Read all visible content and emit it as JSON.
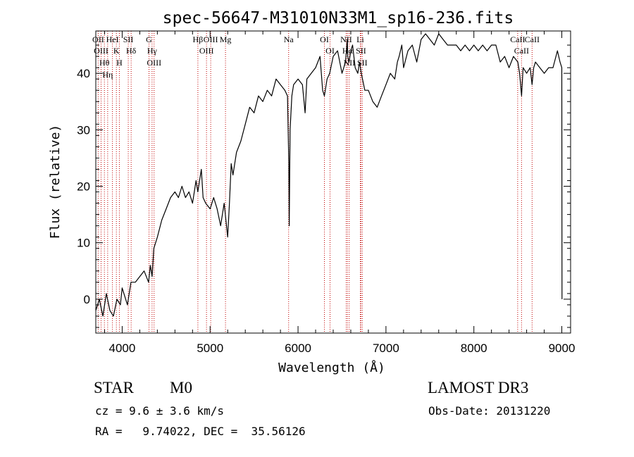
{
  "chart_data": {
    "type": "line",
    "title": "spec-56647-M31010N33M1_sp16-236.fits",
    "xlabel": "Wavelength (Å)",
    "ylabel": "Flux (relative)",
    "xlim": [
      3700,
      9100
    ],
    "ylim": [
      -6,
      47.5
    ],
    "xticks": [
      4000,
      5000,
      6000,
      7000,
      8000,
      9000
    ],
    "yticks": [
      0,
      10,
      20,
      30,
      40
    ],
    "series": [
      {
        "name": "flux",
        "x": [
          3700,
          3740,
          3780,
          3820,
          3860,
          3900,
          3940,
          3980,
          4000,
          4020,
          4060,
          4100,
          4150,
          4200,
          4250,
          4300,
          4320,
          4340,
          4360,
          4400,
          4450,
          4500,
          4550,
          4600,
          4640,
          4680,
          4720,
          4760,
          4800,
          4840,
          4860,
          4880,
          4900,
          4920,
          4950,
          5000,
          5040,
          5080,
          5120,
          5160,
          5200,
          5220,
          5240,
          5260,
          5300,
          5350,
          5400,
          5450,
          5500,
          5550,
          5600,
          5650,
          5700,
          5750,
          5800,
          5850,
          5880,
          5895,
          5900,
          5910,
          5930,
          5950,
          6000,
          6050,
          6080,
          6100,
          6150,
          6200,
          6250,
          6280,
          6300,
          6330,
          6360,
          6400,
          6450,
          6500,
          6540,
          6560,
          6565,
          6580,
          6600,
          6620,
          6650,
          6680,
          6700,
          6720,
          6760,
          6800,
          6850,
          6900,
          6950,
          7000,
          7050,
          7100,
          7130,
          7150,
          7180,
          7200,
          7250,
          7300,
          7350,
          7400,
          7450,
          7500,
          7550,
          7600,
          7650,
          7700,
          7750,
          7800,
          7850,
          7900,
          7950,
          8000,
          8050,
          8100,
          8150,
          8200,
          8250,
          8300,
          8350,
          8400,
          8450,
          8500,
          8520,
          8542,
          8560,
          8600,
          8640,
          8662,
          8680,
          8700,
          8750,
          8800,
          8850,
          8900,
          8950,
          8980,
          9000,
          9002
        ],
        "y": [
          -2,
          0,
          -3,
          1,
          -2,
          -3,
          0,
          -1,
          2,
          1,
          -1,
          3,
          3,
          4,
          5,
          3,
          6,
          4,
          9,
          11,
          14,
          16,
          18,
          19,
          18,
          20,
          18,
          19,
          17,
          21,
          19,
          21,
          23,
          18,
          17,
          16,
          18,
          16,
          13,
          17,
          11,
          17,
          24,
          22,
          26,
          28,
          31,
          34,
          33,
          36,
          35,
          37,
          36,
          39,
          38,
          37,
          36,
          24,
          13,
          30,
          36,
          38,
          39,
          38,
          33,
          39,
          40,
          41,
          43,
          37,
          36,
          39,
          40,
          43,
          44,
          40,
          42,
          46,
          43,
          42,
          44,
          45,
          41,
          40,
          42,
          40,
          37,
          37,
          35,
          34,
          36,
          38,
          40,
          39,
          42,
          43,
          45,
          41,
          44,
          45,
          42,
          46,
          47,
          46,
          45,
          47,
          46,
          45,
          45,
          45,
          44,
          45,
          44,
          45,
          44,
          45,
          44,
          45,
          45,
          42,
          43,
          41,
          43,
          42,
          40,
          36,
          41,
          40,
          41,
          38,
          41,
          42,
          41,
          40,
          41,
          41,
          44,
          42,
          41,
          0
        ]
      }
    ],
    "lines": [
      {
        "label": "Hθ",
        "x": 3798
      },
      {
        "label": "OII",
        "x": 3727
      },
      {
        "label": "OIII",
        "x": 3760
      },
      {
        "label": "Hη",
        "x": 3835
      },
      {
        "label": "HeI",
        "x": 3889
      },
      {
        "label": "K",
        "x": 3934
      },
      {
        "label": "H",
        "x": 3968
      },
      {
        "label": "SII",
        "x": 4069
      },
      {
        "label": "Hδ",
        "x": 4102
      },
      {
        "label": "G",
        "x": 4305
      },
      {
        "label": "OIII",
        "x": 4363
      },
      {
        "label": "Hγ",
        "x": 4340
      },
      {
        "label": "Hβ",
        "x": 4861
      },
      {
        "label": "OIII",
        "x": 4959
      },
      {
        "label": "OIII",
        "x": 5007
      },
      {
        "label": "Mg",
        "x": 5175
      },
      {
        "label": "Na",
        "x": 5893
      },
      {
        "label": "OI",
        "x": 6300
      },
      {
        "label": "OI",
        "x": 6364
      },
      {
        "label": "NII",
        "x": 6548
      },
      {
        "label": "Hα",
        "x": 6563
      },
      {
        "label": "NII",
        "x": 6583
      },
      {
        "label": "Li",
        "x": 6708
      },
      {
        "label": "SII",
        "x": 6716
      },
      {
        "label": "SII",
        "x": 6731
      },
      {
        "label": "CaII",
        "x": 8498
      },
      {
        "label": "CaII",
        "x": 8542
      },
      {
        "label": "CaII",
        "x": 8662
      }
    ]
  },
  "info": {
    "class": "STAR",
    "subclass": "M0",
    "survey": "LAMOST DR3",
    "cz": "cz = 9.6 ± 3.6 km/s",
    "obs_date": "Obs-Date: 20131220",
    "coords": "RA =   9.74022, DEC =  35.56126"
  }
}
